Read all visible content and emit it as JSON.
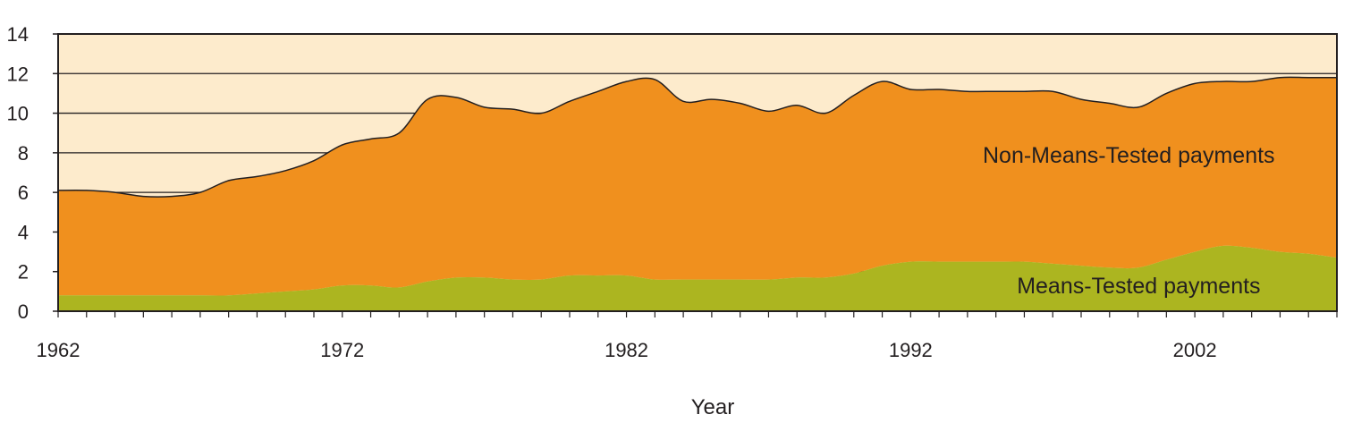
{
  "chart_data": {
    "type": "area",
    "stacked": true,
    "title": "",
    "xlabel": "Year",
    "ylabel": "",
    "xlim": [
      1962,
      2007
    ],
    "ylim": [
      0,
      14
    ],
    "grid": true,
    "x_tick_labels": [
      "1962",
      "1972",
      "1982",
      "1992",
      "2002"
    ],
    "x_ticks": [
      1962,
      1972,
      1982,
      1992,
      2002
    ],
    "y_tick_labels": [
      "0",
      "2",
      "4",
      "6",
      "8",
      "10",
      "12",
      "14"
    ],
    "y_ticks": [
      0,
      2,
      4,
      6,
      8,
      10,
      12,
      14
    ],
    "colors": {
      "plot_background": "#fdebcc",
      "means_tested": "#acb520",
      "non_means_tested": "#f0901e",
      "grid": "#231f20",
      "outline": "#231f20"
    },
    "x": [
      1962,
      1963,
      1964,
      1965,
      1966,
      1967,
      1968,
      1969,
      1970,
      1971,
      1972,
      1973,
      1974,
      1975,
      1976,
      1977,
      1978,
      1979,
      1980,
      1981,
      1982,
      1983,
      1984,
      1985,
      1986,
      1987,
      1988,
      1989,
      1990,
      1991,
      1992,
      1993,
      1994,
      1995,
      1996,
      1997,
      1998,
      1999,
      2000,
      2001,
      2002,
      2003,
      2004,
      2005,
      2006,
      2007
    ],
    "series": [
      {
        "name": "Means-Tested payments",
        "values": [
          0.8,
          0.8,
          0.8,
          0.8,
          0.8,
          0.8,
          0.8,
          0.9,
          1.0,
          1.1,
          1.3,
          1.3,
          1.2,
          1.5,
          1.7,
          1.7,
          1.6,
          1.6,
          1.8,
          1.8,
          1.8,
          1.6,
          1.6,
          1.6,
          1.6,
          1.6,
          1.7,
          1.7,
          1.9,
          2.3,
          2.5,
          2.5,
          2.5,
          2.5,
          2.5,
          2.4,
          2.3,
          2.2,
          2.2,
          2.6,
          3.0,
          3.3,
          3.2,
          3.0,
          2.9,
          2.7
        ]
      },
      {
        "name": "Non-Means-Tested payments",
        "values": [
          5.3,
          5.3,
          5.2,
          5.0,
          5.0,
          5.2,
          5.8,
          5.9,
          6.1,
          6.5,
          7.1,
          7.4,
          7.8,
          9.2,
          9.1,
          8.6,
          8.6,
          8.4,
          8.8,
          9.3,
          9.8,
          10.1,
          9.0,
          9.1,
          8.9,
          8.5,
          8.7,
          8.3,
          9.0,
          9.3,
          8.7,
          8.7,
          8.6,
          8.6,
          8.6,
          8.7,
          8.4,
          8.3,
          8.1,
          8.4,
          8.5,
          8.3,
          8.4,
          8.8,
          8.9,
          9.1
        ]
      }
    ],
    "annotations": [
      {
        "series": "Non-Means-Tested payments",
        "text": "Non-Means-Tested payments",
        "x": 2000,
        "y": 7.5
      },
      {
        "series": "Means-Tested payments",
        "text": "Means-Tested payments",
        "x": 2000,
        "y": 0.9
      }
    ]
  }
}
